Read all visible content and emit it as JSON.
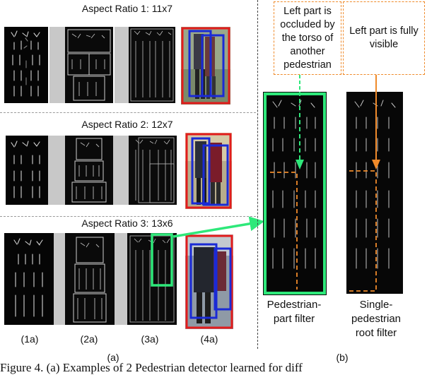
{
  "panel_a": {
    "rows": [
      {
        "title": "Aspect Ratio 1: 11x7"
      },
      {
        "title": "Aspect Ratio 2: 12x7"
      },
      {
        "title": "Aspect Ratio 3: 13x6"
      }
    ],
    "column_labels": [
      "(1a)",
      "(2a)",
      "(3a)",
      "(4a)"
    ],
    "panel_label": "(a)"
  },
  "panel_b": {
    "note_left": "Left part is occluded by the torso of another pedestrian",
    "note_right": "Left part is fully visible",
    "filter_left_caption": "Pedestrian-part filter",
    "filter_right_caption": "Single-pedestrian root filter",
    "panel_label": "(b)"
  },
  "figure_caption": "Figure 4. (a) Examples of 2 Pedestrian detector learned for diff",
  "colors": {
    "green": "#2ee87a",
    "orange": "#ef8a2a",
    "red": "#e21c1c",
    "blue": "#1a2ad6"
  }
}
